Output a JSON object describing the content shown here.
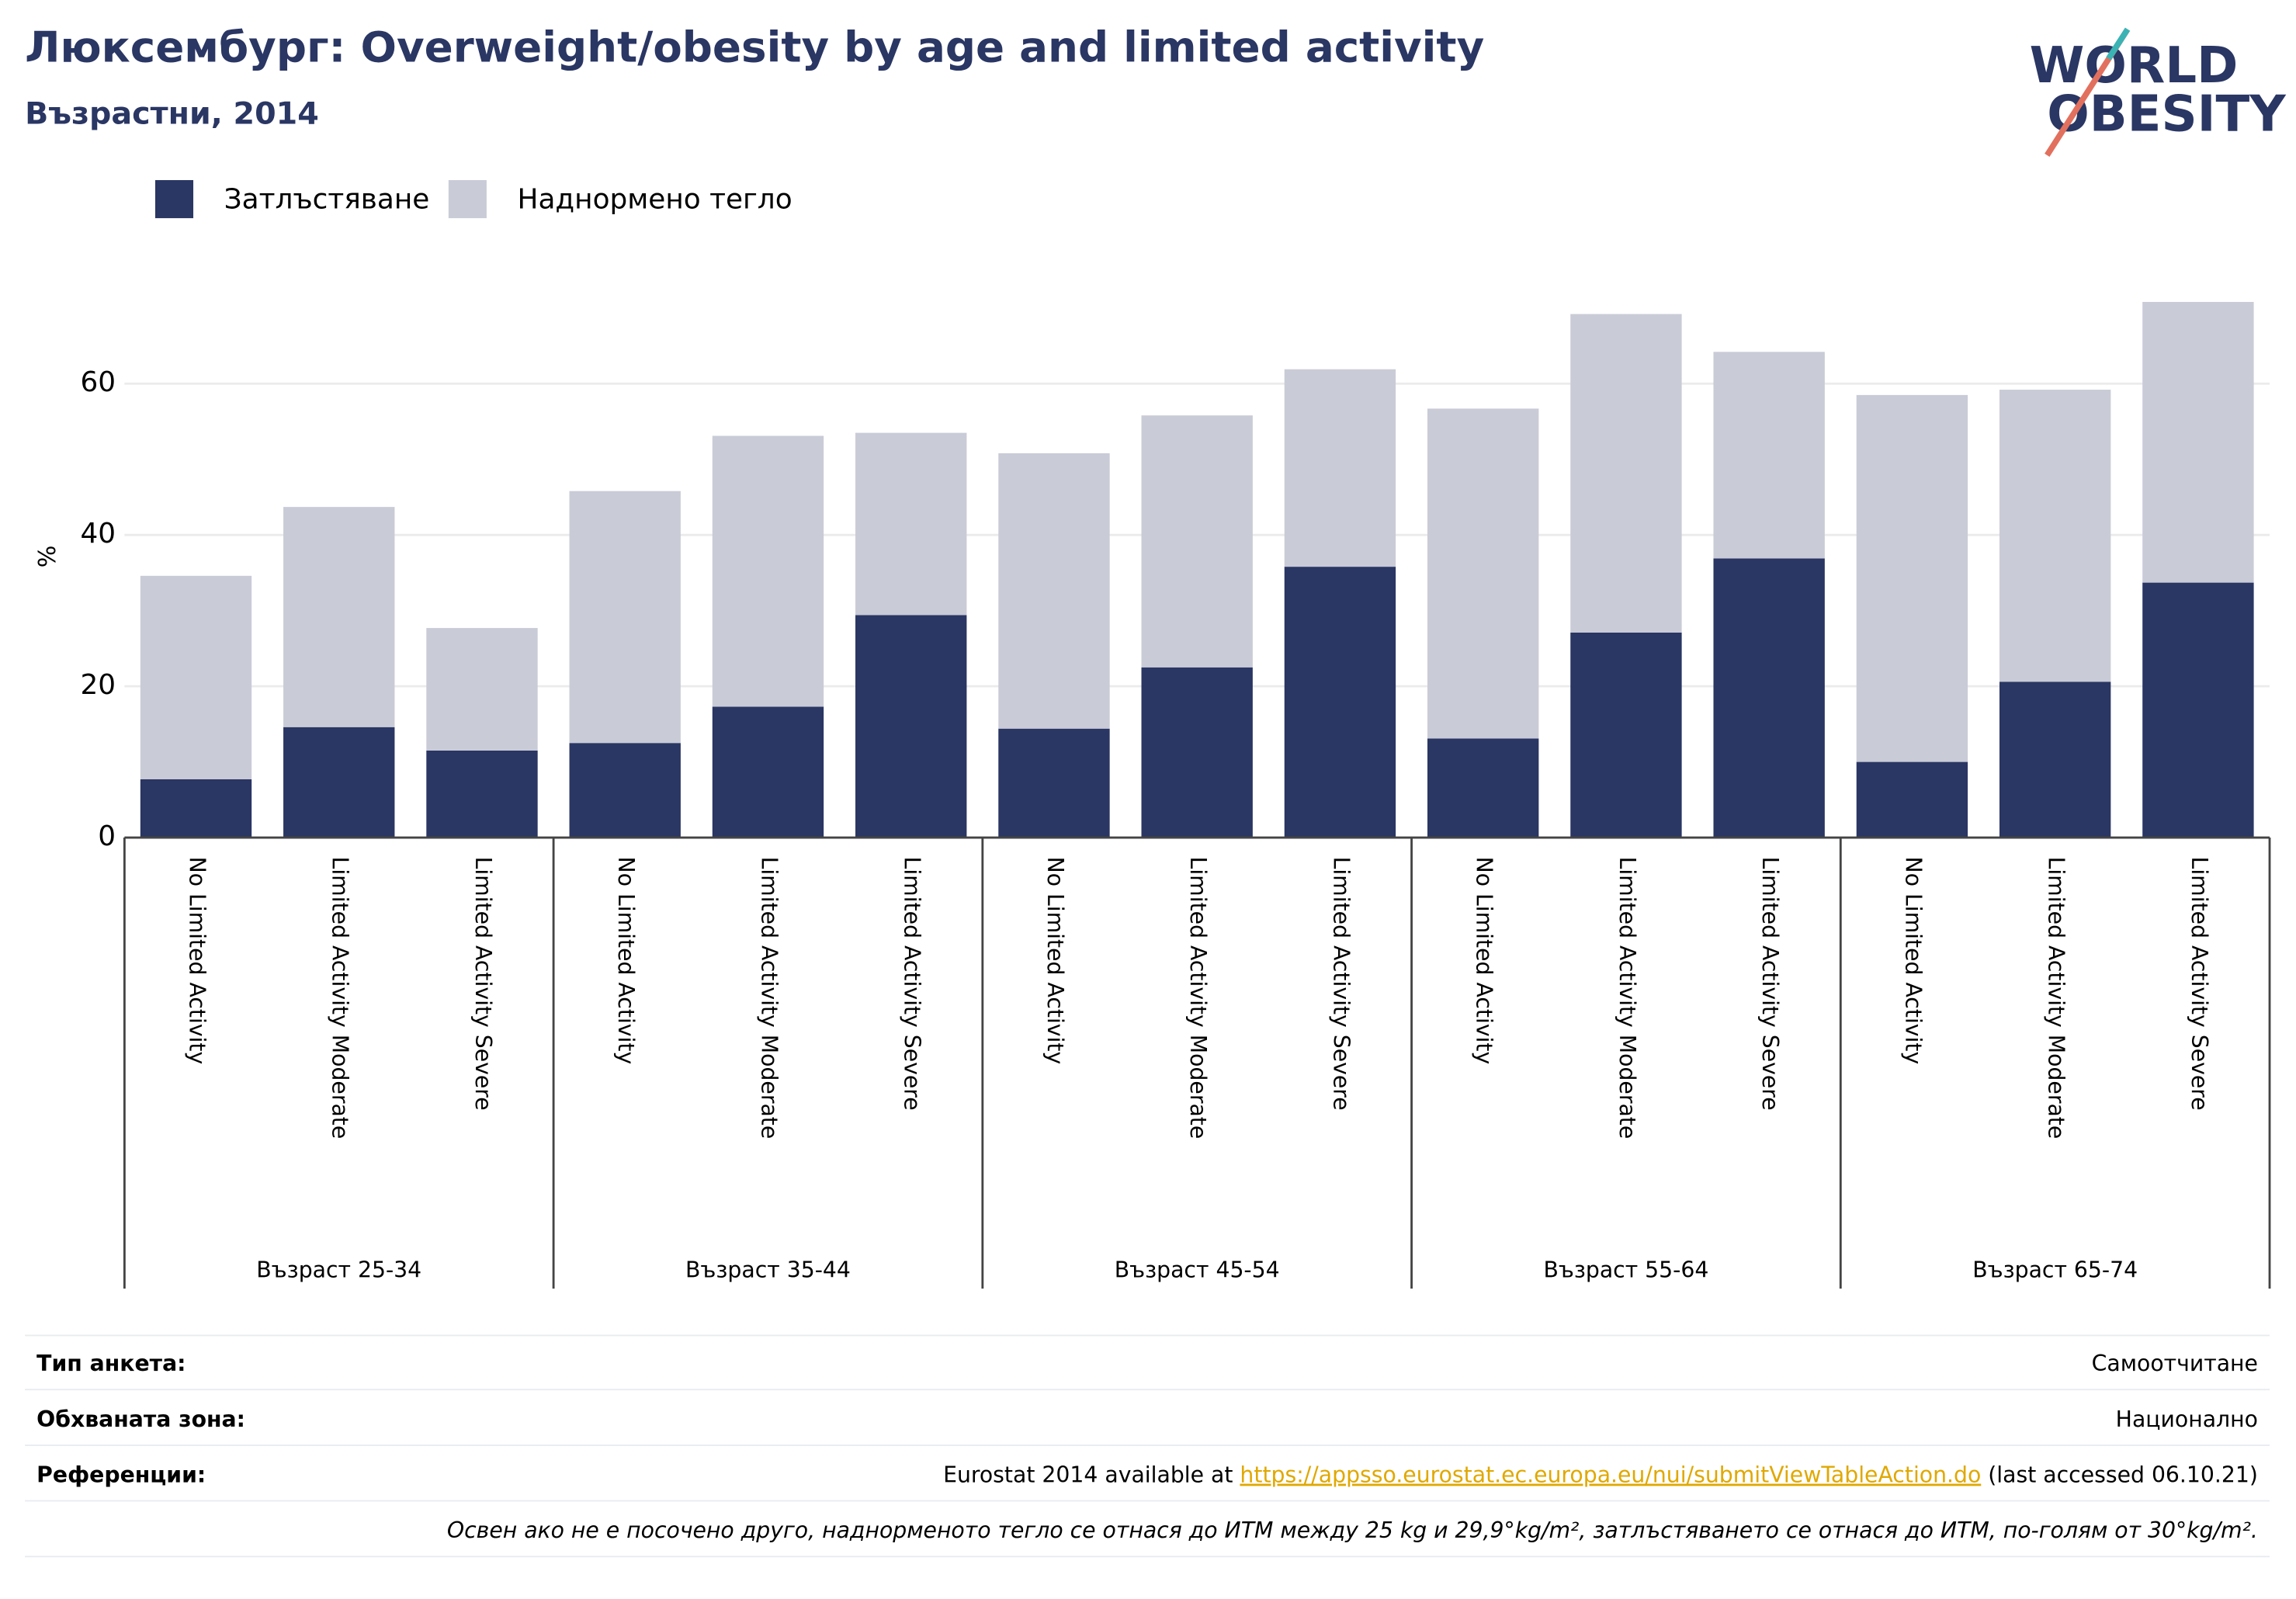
{
  "chart_data": {
    "type": "stacked_bar",
    "title": "Люксембург: Overweight/obesity by age and limited activity",
    "subtitle": "Възрастни, 2014",
    "y_label": "%",
    "categories": [
      "No Limited Activity",
      "Limited Activity Moderate",
      "Limited Activity Severe",
      "No Limited Activity",
      "Limited Activity Moderate",
      "Limited Activity Severe",
      "No Limited Activity",
      "Limited Activity Moderate",
      "Limited Activity Severe",
      "No Limited Activity",
      "Limited Activity Moderate",
      "Limited Activity Severe",
      "No Limited Activity",
      "Limited Activity Moderate",
      "Limited Activity Severe"
    ],
    "groups": [
      "Възраст 25-34",
      "Възраст 35-44",
      "Възраст 45-54",
      "Възраст 55-64",
      "Възраст 65-74"
    ],
    "series": [
      {
        "name": "Затлъстяване",
        "color": "#2a3663",
        "values": [
          7.7,
          14.6,
          11.5,
          12.5,
          17.3,
          29.4,
          14.4,
          22.5,
          35.8,
          13.1,
          27.1,
          36.9,
          10.0,
          20.6,
          33.7
        ]
      },
      {
        "name": "Наднормено тегло",
        "color": "#c9cbd7",
        "values": [
          26.9,
          29.1,
          16.2,
          33.3,
          35.8,
          24.1,
          36.4,
          33.3,
          26.1,
          43.6,
          42.1,
          27.3,
          48.5,
          38.6,
          37.1
        ]
      }
    ],
    "ylim": [
      0,
      72
    ],
    "yticks": [
      0,
      20,
      40,
      60
    ],
    "grid": true
  },
  "logo": {
    "lines": [
      "WORLD",
      "OBESITY"
    ]
  },
  "footer": {
    "rows": [
      {
        "label": "Тип анкета:",
        "value": "Самоотчитане"
      },
      {
        "label": "Обхваната зона:",
        "value": "Национално"
      }
    ],
    "reference": {
      "label": "Референции:",
      "before": "Eurostat 2014 available at ",
      "link": "https://appsso.eurostat.ec.europa.eu/nui/submitViewTableAction.do",
      "after": " (last accessed 06.10.21)"
    },
    "note": "Освен ако не е посочено друго, наднорменото тегло се отнася до ИТМ между 25 kg и 29,9°kg/m², затлъстяването се отнася до ИТМ, по-голям от 30°kg/m²."
  }
}
